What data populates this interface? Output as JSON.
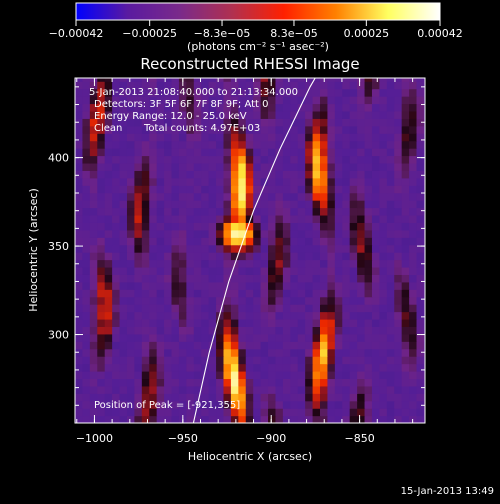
{
  "chart_data": {
    "type": "heatmap",
    "title": "Reconstructed RHESSI Image",
    "xlabel": "Heliocentric X (arcsec)",
    "ylabel": "Heliocentric Y (arcsec)",
    "xlim": [
      -1011,
      -813
    ],
    "ylim": [
      250,
      445
    ],
    "x_ticks": [
      -1000,
      -950,
      -900,
      -850
    ],
    "x_tick_labels": [
      "−1000",
      "−950",
      "−900",
      "−850"
    ],
    "y_ticks": [
      300,
      350,
      400
    ],
    "y_tick_labels": [
      "300",
      "350",
      "400"
    ],
    "colorbar": {
      "range": [
        -0.00042,
        0.00042
      ],
      "ticks": [
        -0.00042,
        -0.00025,
        -8.3e-05,
        8.3e-05,
        0.00025,
        0.00042
      ],
      "tick_labels": [
        "−0.00042",
        "−0.00025",
        "−8.3e−05",
        "8.3e−05",
        "0.00025",
        "0.00042"
      ],
      "unit_label": "(photons cm⁻² s⁻¹ asec⁻²)",
      "colors": [
        "#0000ff",
        "#5a1aa0",
        "#7a2a8a",
        "#b03050",
        "#ff2000",
        "#ff8000",
        "#ffff60",
        "#ffffff"
      ]
    },
    "annotations": {
      "time_range": "5-Jan-2013 21:08:40.000 to 21:13:34.000",
      "detectors": "Detectors: 3F 5F 6F 7F 8F 9F; Att 0",
      "energy": "Energy Range: 12.0 - 25.0 keV",
      "clean": "Clean",
      "total_counts": "Total counts: 4.97E+03",
      "peak": "Position of Peak = [-921,355]"
    },
    "peak": {
      "x": -921,
      "y": 355
    },
    "limb_arc": [
      {
        "x": -944,
        "y": 250
      },
      {
        "x": -935,
        "y": 290
      },
      {
        "x": -924,
        "y": 330
      },
      {
        "x": -910,
        "y": 370
      },
      {
        "x": -895,
        "y": 405
      },
      {
        "x": -878,
        "y": 440
      },
      {
        "x": -874,
        "y": 447
      }
    ],
    "stripes": [
      {
        "x": -1000,
        "intensity": 0.65
      },
      {
        "x": -973,
        "intensity": 0.6
      },
      {
        "x": -951,
        "intensity": 0.45
      },
      {
        "x": -923,
        "intensity": 0.95
      },
      {
        "x": -901,
        "intensity": 0.55
      },
      {
        "x": -872,
        "intensity": 0.85
      },
      {
        "x": -850,
        "intensity": 0.55
      },
      {
        "x": -827,
        "intensity": 0.5
      }
    ]
  },
  "footer": {
    "date": "15-Jan-2013 13:49"
  }
}
